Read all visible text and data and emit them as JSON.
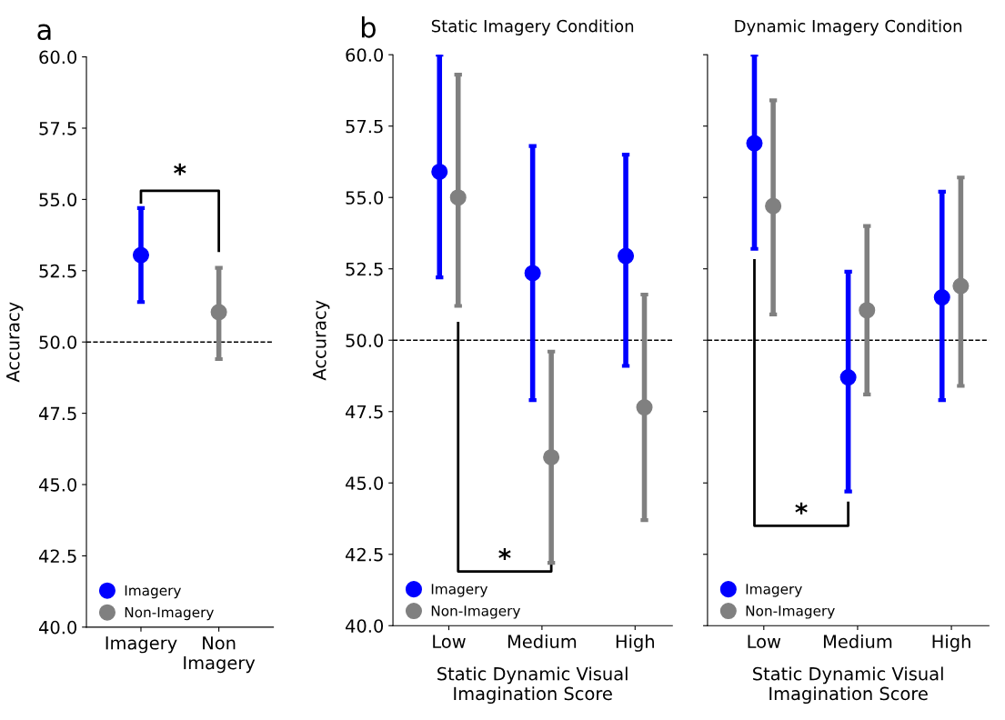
{
  "chart_data": [
    {
      "type": "scatter",
      "ylabel": "Accuracy",
      "categories": [
        "Imagery",
        "Non\nImagery"
      ],
      "series": [
        {
          "name": "Imagery",
          "color": "#0000ff",
          "values": [
            53.05,
            null
          ],
          "errors": [
            [
              51.4,
              54.7
            ],
            null
          ]
        },
        {
          "name": "Non-Imagery",
          "color": "#808080",
          "values": [
            null,
            51.05
          ],
          "errors": [
            null,
            [
              49.4,
              52.6
            ]
          ]
        }
      ],
      "ylim": [
        40,
        60
      ],
      "yticks": [
        {
          "value": 40,
          "label": "40.0"
        },
        {
          "value": 42.5,
          "label": "42.5"
        },
        {
          "value": 45,
          "label": "45.0"
        },
        {
          "value": 47.5,
          "label": "47.5"
        },
        {
          "value": 50,
          "label": "50.0"
        },
        {
          "value": 52.5,
          "label": "52.5"
        },
        {
          "value": 55,
          "label": "55.0"
        },
        {
          "value": 57.5,
          "label": "57.5"
        },
        {
          "value": 60,
          "label": "60.0"
        }
      ],
      "ref_lines": [
        {
          "axis": "y",
          "value": 50,
          "color": "#000000",
          "line_style": "dashed"
        }
      ],
      "annotations": [
        "a",
        "*"
      ],
      "marker": "circle",
      "legend": "bottom left",
      "grid": false
    },
    {
      "type": "scatter",
      "title": "Static Imagery Condition",
      "ylabel": "Accuracy",
      "xlabel": "Static Dynamic Visual\nImagination Score",
      "categories": [
        "Low",
        "Medium",
        "High"
      ],
      "series": [
        {
          "name": "Imagery",
          "color": "#0000ff",
          "values": [
            55.9,
            52.35,
            52.95
          ],
          "errors": [
            [
              52.2,
              60.0
            ],
            [
              47.9,
              56.8
            ],
            [
              49.1,
              56.5
            ]
          ]
        },
        {
          "name": "Non-Imagery",
          "color": "#808080",
          "values": [
            55.0,
            45.9,
            47.65
          ],
          "errors": [
            [
              51.2,
              59.3
            ],
            [
              42.2,
              49.6
            ],
            [
              43.7,
              51.6
            ]
          ]
        }
      ],
      "ylim": [
        40,
        60
      ],
      "yticks": [
        {
          "value": 40,
          "label": "40.0"
        },
        {
          "value": 42.5,
          "label": "42.5"
        },
        {
          "value": 45,
          "label": "45.0"
        },
        {
          "value": 47.5,
          "label": "47.5"
        },
        {
          "value": 50,
          "label": "50.0"
        },
        {
          "value": 52.5,
          "label": "52.5"
        },
        {
          "value": 55,
          "label": "55.0"
        },
        {
          "value": 57.5,
          "label": "57.5"
        },
        {
          "value": 60,
          "label": "60.0"
        }
      ],
      "ref_lines": [
        {
          "axis": "y",
          "value": 50,
          "color": "#000000",
          "line_style": "dashed"
        }
      ],
      "annotations": [
        "b",
        "*"
      ],
      "marker": "circle",
      "legend": "bottom left",
      "grid": false
    },
    {
      "type": "scatter",
      "title": "Dynamic Imagery Condition",
      "xlabel": "Static Dynamic Visual\nImagination Score",
      "categories": [
        "Low",
        "Medium",
        "High"
      ],
      "series": [
        {
          "name": "Imagery",
          "color": "#0000ff",
          "values": [
            56.9,
            48.7,
            51.5
          ],
          "errors": [
            [
              53.2,
              60.0
            ],
            [
              44.7,
              52.4
            ],
            [
              47.9,
              55.2
            ]
          ]
        },
        {
          "name": "Non-Imagery",
          "color": "#808080",
          "values": [
            54.7,
            51.05,
            51.9
          ],
          "errors": [
            [
              50.9,
              58.4
            ],
            [
              48.1,
              54.0
            ],
            [
              48.4,
              55.7
            ]
          ]
        }
      ],
      "ylim": [
        40,
        60
      ],
      "yticks": [
        {
          "value": 40,
          "label": null
        },
        {
          "value": 42.5,
          "label": null
        },
        {
          "value": 45,
          "label": null
        },
        {
          "value": 47.5,
          "label": null
        },
        {
          "value": 50,
          "label": null
        },
        {
          "value": 52.5,
          "label": null
        },
        {
          "value": 55,
          "label": null
        },
        {
          "value": 57.5,
          "label": null
        },
        {
          "value": 60,
          "label": null
        }
      ],
      "ref_lines": [
        {
          "axis": "y",
          "value": 50,
          "color": "#000000",
          "line_style": "dashed"
        }
      ],
      "annotations": [
        "*"
      ],
      "tick_labels": "x",
      "marker": "circle",
      "legend": "bottom left",
      "grid": false
    }
  ]
}
